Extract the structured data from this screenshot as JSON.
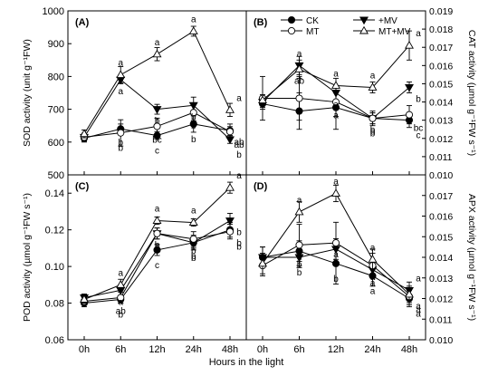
{
  "figure": {
    "xlabel": "Hours in the light"
  },
  "legend": {
    "entries": [
      {
        "name": "CK",
        "marker": "filled-circle"
      },
      {
        "name": "+MV",
        "marker": "filled-triangle-down"
      },
      {
        "name": "MT",
        "marker": "open-circle"
      },
      {
        "name": "MT+MV",
        "marker": "open-triangle-up"
      }
    ]
  },
  "chart_data": [
    {
      "type": "line",
      "panel": "(A)",
      "ylabel": "SOD activity (unit g⁻¹FW)",
      "y_axis_side": "left",
      "ylim": [
        500,
        1000
      ],
      "yticks": [
        500,
        600,
        700,
        800,
        900,
        1000
      ],
      "categories": [
        "0h",
        "6h",
        "12h",
        "24h",
        "48h"
      ],
      "series": [
        {
          "name": "CK",
          "values": [
            612,
            640,
            620,
            655,
            635
          ],
          "errors": [
            12,
            15,
            12,
            25,
            20
          ]
        },
        {
          "name": "+MV",
          "values": [
            615,
            790,
            700,
            712,
            608
          ],
          "errors": [
            12,
            12,
            15,
            25,
            12
          ]
        },
        {
          "name": "MT",
          "values": [
            615,
            628,
            648,
            690,
            632
          ],
          "errors": [
            12,
            40,
            25,
            25,
            15
          ]
        },
        {
          "name": "MT+MV",
          "values": [
            625,
            805,
            868,
            938,
            698
          ],
          "errors": [
            12,
            25,
            20,
            15,
            20
          ]
        }
      ],
      "annotations": [
        {
          "x": "0h",
          "labels": []
        },
        {
          "x": "6h",
          "labels": [
            "a",
            "a",
            "b",
            "b"
          ]
        },
        {
          "x": "12h",
          "labels": [
            "a",
            "b",
            "bc",
            "c"
          ]
        },
        {
          "x": "24h",
          "labels": [
            "a",
            "b",
            "b",
            "b"
          ]
        },
        {
          "x": "48h",
          "labels": [
            "a",
            "ab",
            "ab",
            "b"
          ]
        }
      ]
    },
    {
      "type": "line",
      "panel": "(B)",
      "ylabel": "CAT activity (µmol g⁻¹FW s⁻¹)",
      "y_axis_side": "right",
      "ylim": [
        0.01,
        0.019
      ],
      "yticks": [
        0.01,
        0.011,
        0.012,
        0.013,
        0.014,
        0.015,
        0.016,
        0.017,
        0.018,
        0.019
      ],
      "categories": [
        "0h",
        "6h",
        "12h",
        "24h",
        "48h"
      ],
      "series": [
        {
          "name": "CK",
          "values": [
            0.0139,
            0.0135,
            0.0137,
            0.0131,
            0.013
          ],
          "errors": [
            0.0003,
            0.001,
            0.0012,
            0.0003,
            0.0004
          ]
        },
        {
          "name": "+MV",
          "values": [
            0.014,
            0.016,
            0.0145,
            0.0131,
            0.0148
          ],
          "errors": [
            0.0003,
            0.0005,
            0.0004,
            0.0003,
            0.0003
          ]
        },
        {
          "name": "MT",
          "values": [
            0.0142,
            0.0142,
            0.014,
            0.0131,
            0.0133
          ],
          "errors": [
            0.0012,
            0.0012,
            0.0008,
            0.0004,
            0.0005
          ]
        },
        {
          "name": "MT+MV",
          "values": [
            0.0141,
            0.0158,
            0.0149,
            0.0148,
            0.0171
          ],
          "errors": [
            0.0003,
            0.0005,
            0.0004,
            0.0003,
            0.0008
          ]
        }
      ],
      "annotations": [
        {
          "x": "6h",
          "labels": [
            "a",
            "ab",
            "b"
          ]
        },
        {
          "x": "12h",
          "labels": [
            "a",
            "a",
            "a"
          ]
        },
        {
          "x": "24h",
          "labels": [
            "a",
            "b",
            "b",
            "b"
          ]
        },
        {
          "x": "48h",
          "labels": [
            "a",
            "b",
            "bc",
            "c"
          ]
        }
      ]
    },
    {
      "type": "line",
      "panel": "(C)",
      "ylabel": "POD activity (µmol g⁻¹FW s⁻¹)",
      "y_axis_side": "left",
      "ylim": [
        0.06,
        0.15
      ],
      "yticks": [
        0.06,
        0.08,
        0.1,
        0.12,
        0.14
      ],
      "categories": [
        "0h",
        "6h",
        "12h",
        "24h",
        "48h"
      ],
      "series": [
        {
          "name": "CK",
          "values": [
            0.08,
            0.082,
            0.109,
            0.113,
            0.12
          ],
          "errors": [
            0.002,
            0.002,
            0.003,
            0.003,
            0.004
          ]
        },
        {
          "name": "+MV",
          "values": [
            0.083,
            0.087,
            0.118,
            0.113,
            0.125
          ],
          "errors": [
            0.002,
            0.003,
            0.003,
            0.004,
            0.004
          ]
        },
        {
          "name": "MT",
          "values": [
            0.081,
            0.083,
            0.118,
            0.115,
            0.119
          ],
          "errors": [
            0.002,
            0.003,
            0.003,
            0.004,
            0.004
          ]
        },
        {
          "name": "MT+MV",
          "values": [
            0.082,
            0.09,
            0.125,
            0.124,
            0.143
          ],
          "errors": [
            0.002,
            0.003,
            0.002,
            0.002,
            0.003
          ]
        }
      ],
      "annotations": [
        {
          "x": "6h",
          "labels": [
            "a",
            "a",
            "ab",
            "b"
          ]
        },
        {
          "x": "12h",
          "labels": [
            "a",
            "b",
            "b",
            "c"
          ]
        },
        {
          "x": "24h",
          "labels": [
            "a",
            "b",
            "b",
            "b"
          ]
        },
        {
          "x": "48h",
          "labels": [
            "a",
            "b",
            "b",
            "b"
          ]
        }
      ]
    },
    {
      "type": "line",
      "panel": "(D)",
      "ylabel": "APX activity (µmol g⁻¹FW s⁻¹)",
      "y_axis_side": "right",
      "ylim": [
        0.01,
        0.018
      ],
      "yticks": [
        0.01,
        0.011,
        0.012,
        0.013,
        0.014,
        0.015,
        0.016,
        0.017
      ],
      "categories": [
        "0h",
        "6h",
        "12h",
        "24h",
        "48h"
      ],
      "series": [
        {
          "name": "CK",
          "values": [
            0.014,
            0.0143,
            0.0137,
            0.0131,
            0.012
          ],
          "errors": [
            0.0005,
            0.0005,
            0.001,
            0.0005,
            0.0004
          ]
        },
        {
          "name": "+MV",
          "values": [
            0.014,
            0.014,
            0.0144,
            0.0134,
            0.0124
          ],
          "errors": [
            0.0005,
            0.0005,
            0.0005,
            0.0004,
            0.0004
          ]
        },
        {
          "name": "MT",
          "values": [
            0.0136,
            0.0146,
            0.0147,
            0.0136,
            0.0121
          ],
          "errors": [
            0.0005,
            0.001,
            0.001,
            0.0006,
            0.0004
          ]
        },
        {
          "name": "MT+MV",
          "values": [
            0.0137,
            0.0162,
            0.0171,
            0.0139,
            0.0122
          ],
          "errors": [
            0.0005,
            0.0005,
            0.0004,
            0.0005,
            0.0004
          ]
        }
      ],
      "annotations": [
        {
          "x": "6h",
          "labels": [
            "a",
            "a",
            "b",
            "b"
          ]
        },
        {
          "x": "12h",
          "labels": [
            "a",
            "a",
            "b",
            "b"
          ]
        },
        {
          "x": "24h",
          "labels": [
            "a",
            "a",
            "a",
            "a"
          ]
        },
        {
          "x": "48h",
          "labels": [
            "a",
            "a",
            "a",
            "a"
          ]
        }
      ]
    }
  ]
}
